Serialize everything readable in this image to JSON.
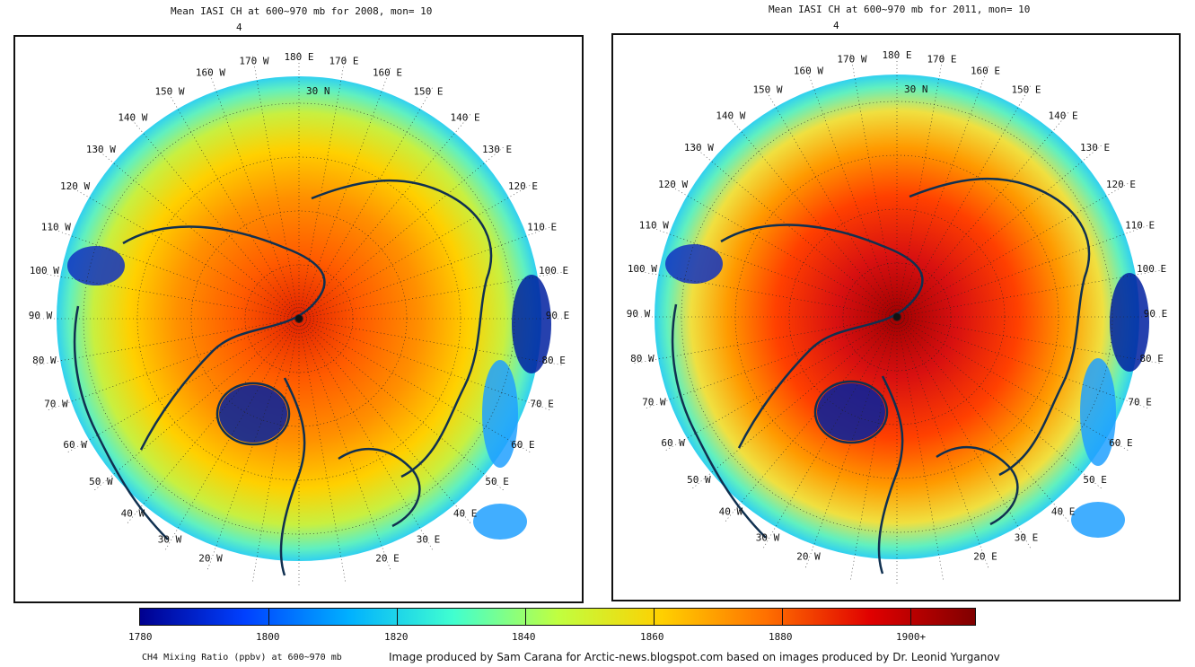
{
  "panels": [
    {
      "title": "Mean IASI CH  at 600~970 mb for 2008,  mon=  10",
      "intensity": 0.55
    },
    {
      "title": "Mean IASI CH  at 600~970 mb for 2011,  mon=  10",
      "intensity": 0.85
    }
  ],
  "top_label": "4",
  "longitude_labels": [
    "180 E",
    "170 E",
    "160 E",
    "150 E",
    "140 E",
    "130 E",
    "120 E",
    "110 E",
    "100 E",
    "90 E",
    "80 E",
    "70 E",
    "60 E",
    "50 E",
    "40 E",
    "30 E",
    "20 E",
    "170 W",
    "160 W",
    "150 W",
    "140 W",
    "130 W",
    "120 W",
    "110 W",
    "100 W",
    "90 W",
    "80 W",
    "70 W",
    "60 W",
    "50 W",
    "40 W",
    "30 W",
    "20 W"
  ],
  "latitude_label": "30  N",
  "colorbar": {
    "colors": [
      "#00008f",
      "#0040ff",
      "#00b0ff",
      "#40ffd0",
      "#c0ff40",
      "#ffd000",
      "#ff7000",
      "#e00000",
      "#800000"
    ],
    "ticks": [
      "1780",
      "1800",
      "1820",
      "1840",
      "1860",
      "1880",
      "1900+"
    ]
  },
  "footer": {
    "left": "CH4 Mixing Ratio (ppbv) at 600~970 mb",
    "right": "Image produced by Sam Carana for Arctic-news.blogspot.com based on images produced by Dr. Leonid Yurganov"
  }
}
